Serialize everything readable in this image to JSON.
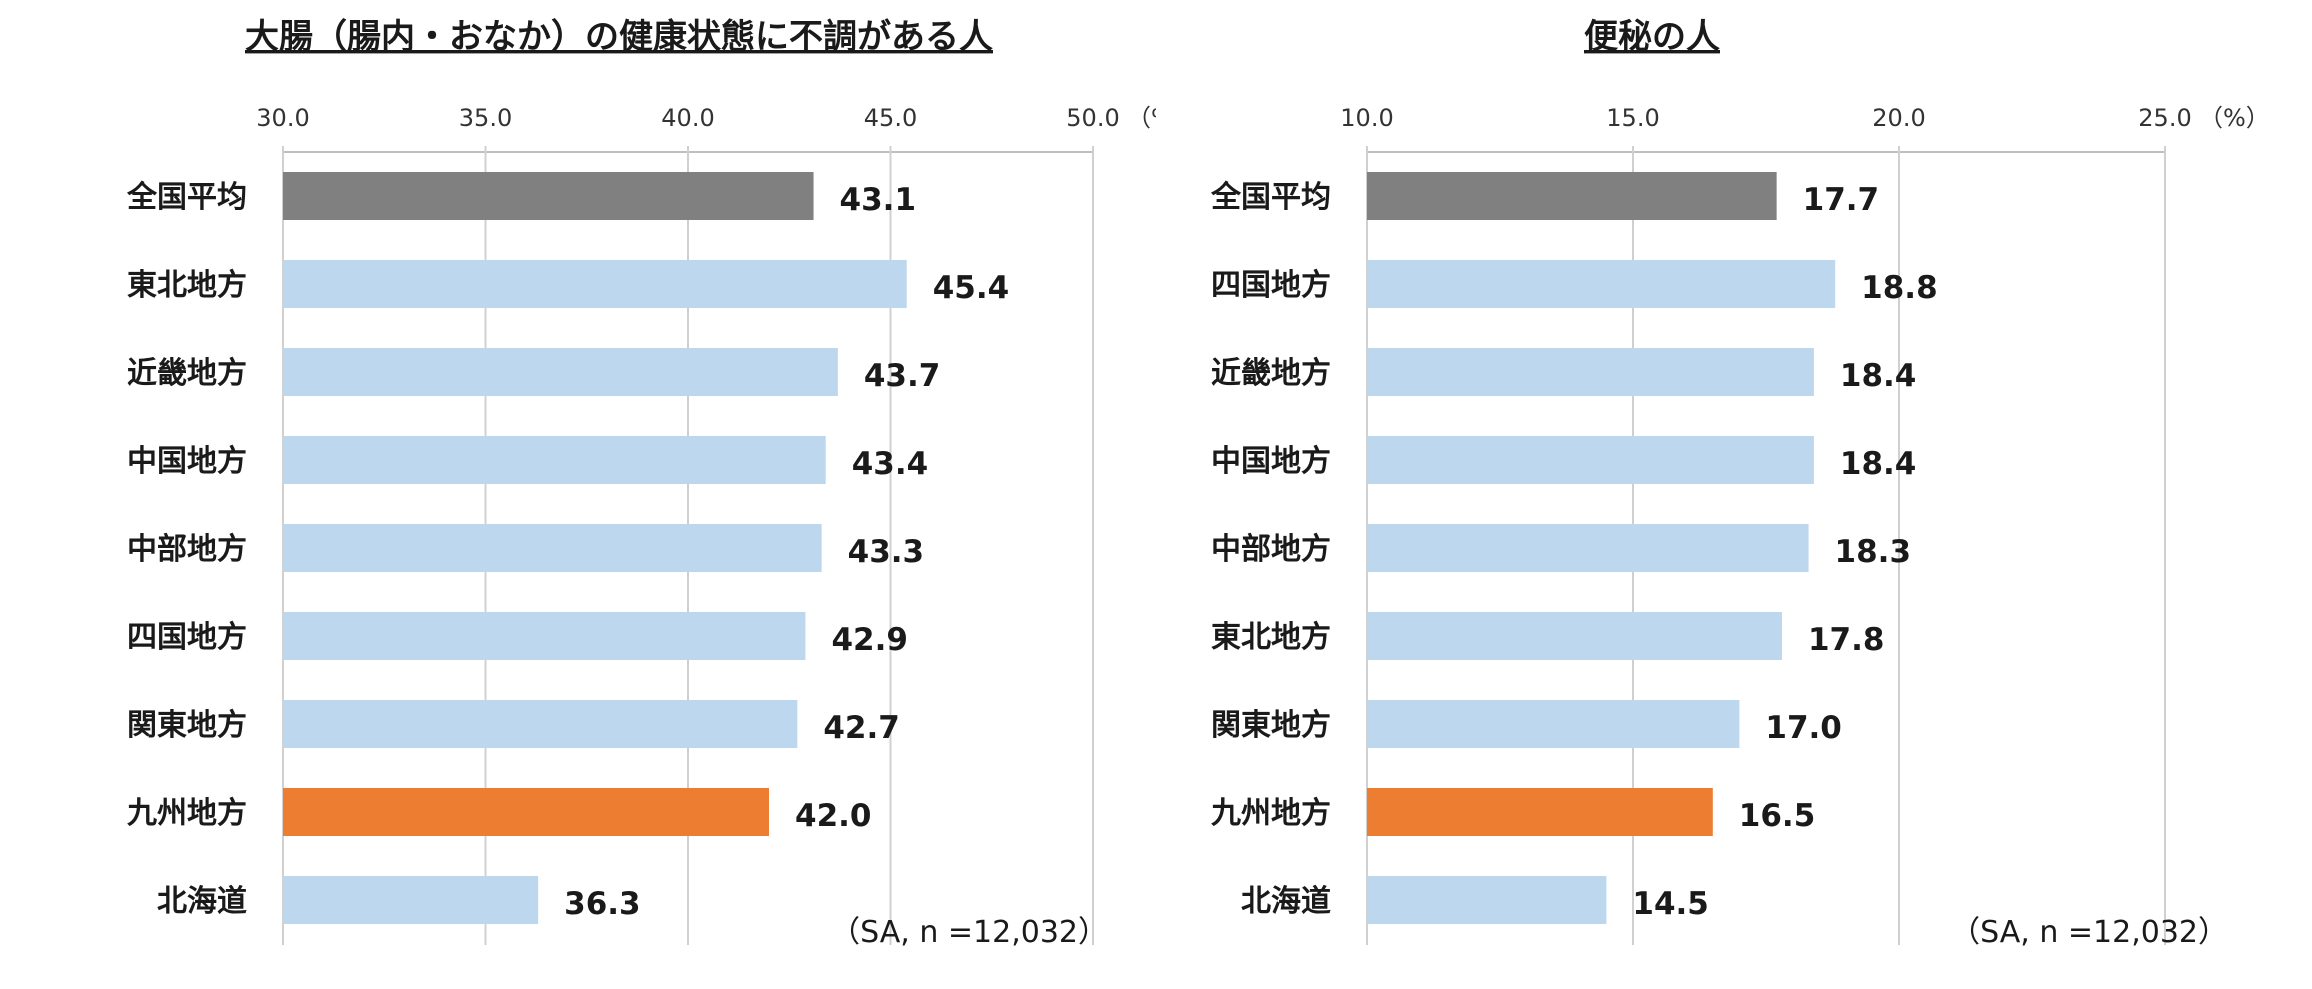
{
  "chart_data": [
    {
      "type": "bar",
      "orientation": "horizontal",
      "title": "大腸（腸内・おなか）の健康状態に不調がある人",
      "categories": [
        "全国平均",
        "東北地方",
        "近畿地方",
        "中国地方",
        "中部地方",
        "四国地方",
        "関東地方",
        "九州地方",
        "北海道"
      ],
      "values": [
        43.1,
        45.4,
        43.7,
        43.4,
        43.3,
        42.9,
        42.7,
        42.0,
        36.3
      ],
      "value_labels": [
        "43.1",
        "45.4",
        "43.7",
        "43.4",
        "43.3",
        "42.9",
        "42.7",
        "42.0",
        "36.3"
      ],
      "bar_colors": [
        "#808080",
        "#bdd7ee",
        "#bdd7ee",
        "#bdd7ee",
        "#bdd7ee",
        "#bdd7ee",
        "#bdd7ee",
        "#ed7d31",
        "#bdd7ee"
      ],
      "xlim": [
        30,
        50
      ],
      "ticks": [
        30,
        35,
        40,
        45,
        50
      ],
      "tick_labels": [
        "30.0",
        "35.0",
        "40.0",
        "45.0",
        "50.0"
      ],
      "unit_label": "（%）",
      "note": "（SA, n =12,032）",
      "grid": true
    },
    {
      "type": "bar",
      "orientation": "horizontal",
      "title": "便秘の人",
      "categories": [
        "全国平均",
        "四国地方",
        "近畿地方",
        "中国地方",
        "中部地方",
        "東北地方",
        "関東地方",
        "九州地方",
        "北海道"
      ],
      "values": [
        17.7,
        18.8,
        18.4,
        18.4,
        18.3,
        17.8,
        17.0,
        16.5,
        14.5
      ],
      "value_labels": [
        "17.7",
        "18.8",
        "18.4",
        "18.4",
        "18.3",
        "17.8",
        "17.0",
        "16.5",
        "14.5"
      ],
      "bar_colors": [
        "#808080",
        "#bdd7ee",
        "#bdd7ee",
        "#bdd7ee",
        "#bdd7ee",
        "#bdd7ee",
        "#bdd7ee",
        "#ed7d31",
        "#bdd7ee"
      ],
      "xlim": [
        10,
        25
      ],
      "ticks": [
        10,
        15,
        20,
        25
      ],
      "tick_labels": [
        "10.0",
        "15.0",
        "20.0",
        "25.0"
      ],
      "unit_label": "（%）",
      "note": "（SA, n =12,032）",
      "grid": true
    }
  ]
}
